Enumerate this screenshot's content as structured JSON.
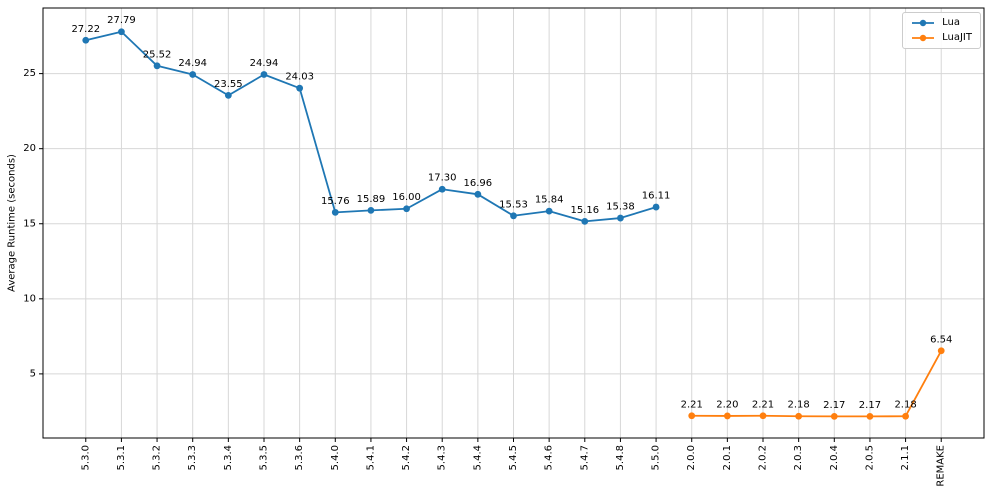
{
  "chart_data": {
    "type": "line",
    "title": "",
    "xlabel": "",
    "ylabel": "Average Runtime (seconds)",
    "categories": [
      "5.3.0",
      "5.3.1",
      "5.3.2",
      "5.3.3",
      "5.3.4",
      "5.3.5",
      "5.3.6",
      "5.4.0",
      "5.4.1",
      "5.4.2",
      "5.4.3",
      "5.4.4",
      "5.4.5",
      "5.4.6",
      "5.4.7",
      "5.4.8",
      "5.5.0",
      "2.0.0",
      "2.0.1",
      "2.0.2",
      "2.0.3",
      "2.0.4",
      "2.0.5",
      "2.1.1",
      "REMAKE"
    ],
    "yticks": [
      5,
      10,
      15,
      20,
      25
    ],
    "ylim": [
      0.73,
      29.37
    ],
    "xlim": [
      -1.2,
      25.2
    ],
    "grid": true,
    "grid_color": "#d7d7d7",
    "spine_color": "#000000",
    "legend_position": "upper right",
    "value_label_decimals": 2,
    "series": [
      {
        "name": "Lua",
        "color": "#1f77b4",
        "start_index": 0,
        "values": [
          27.22,
          27.79,
          25.52,
          24.94,
          23.55,
          24.94,
          24.03,
          15.76,
          15.89,
          16.0,
          17.3,
          16.96,
          15.53,
          15.84,
          15.16,
          15.38,
          16.11
        ]
      },
      {
        "name": "LuaJIT",
        "color": "#ff7f0e",
        "start_index": 17,
        "values": [
          2.21,
          2.2,
          2.21,
          2.18,
          2.17,
          2.17,
          2.18,
          6.54
        ]
      }
    ]
  }
}
